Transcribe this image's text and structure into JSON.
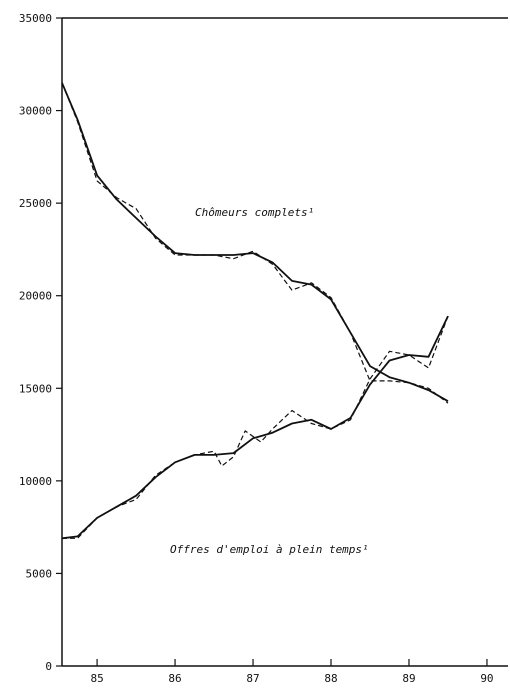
{
  "chart_data": {
    "type": "line",
    "xlim": [
      84.55,
      90.27
    ],
    "xticks": [
      85,
      86,
      87,
      88,
      89,
      90
    ],
    "ylim": [
      0,
      35000
    ],
    "yticks": [
      0,
      5000,
      10000,
      15000,
      20000,
      25000,
      30000,
      35000
    ],
    "annotations": [
      "Chômeurs complets¹",
      "Offres d'emploi à plein temps¹"
    ],
    "series": [
      {
        "color": "#111",
        "dashed": false,
        "x": [
          84.55,
          84.75,
          85.0,
          85.25,
          85.5,
          85.75,
          86.0,
          86.25,
          86.5,
          86.75,
          87.0,
          87.25,
          87.5,
          87.75,
          88.0,
          88.25,
          88.5,
          88.75,
          89.0,
          89.25,
          89.5
        ],
        "values": [
          31500,
          29500,
          26500,
          25200,
          24200,
          23200,
          22300,
          22200,
          22200,
          22200,
          22300,
          21800,
          20800,
          20600,
          19800,
          18000,
          16200,
          15600,
          15300,
          14900,
          14300
        ]
      },
      {
        "color": "#111",
        "dashed": true,
        "x": [
          84.55,
          84.75,
          85.0,
          85.25,
          85.5,
          85.75,
          86.0,
          86.25,
          86.5,
          86.75,
          87.0,
          87.25,
          87.5,
          87.75,
          88.0,
          88.25,
          88.5,
          88.75,
          89.0,
          89.25,
          89.5
        ],
        "values": [
          31500,
          29400,
          26200,
          25300,
          24700,
          23100,
          22200,
          22200,
          22200,
          22000,
          22400,
          21700,
          20300,
          20700,
          19900,
          18000,
          15400,
          15400,
          15300,
          15000,
          14200
        ]
      },
      {
        "color": "#111",
        "dashed": false,
        "x": [
          84.55,
          84.75,
          85.0,
          85.25,
          85.5,
          85.75,
          86.0,
          86.25,
          86.5,
          86.75,
          87.0,
          87.25,
          87.5,
          87.75,
          88.0,
          88.25,
          88.5,
          88.75,
          89.0,
          89.25,
          89.5
        ],
        "values": [
          6900,
          7000,
          8000,
          8600,
          9200,
          10200,
          11000,
          11400,
          11400,
          11500,
          12300,
          12600,
          13100,
          13300,
          12800,
          13400,
          15200,
          16500,
          16800,
          16700,
          18900
        ]
      },
      {
        "color": "#111",
        "dashed": true,
        "x": [
          84.55,
          84.75,
          85.0,
          85.25,
          85.5,
          85.75,
          86.0,
          86.25,
          86.5,
          86.6,
          86.75,
          86.9,
          87.1,
          87.25,
          87.5,
          87.75,
          88.0,
          88.25,
          88.5,
          88.75,
          89.0,
          89.25,
          89.5
        ],
        "values": [
          6900,
          6900,
          8000,
          8600,
          9000,
          10300,
          11000,
          11400,
          11600,
          10800,
          11300,
          12700,
          12100,
          12800,
          13800,
          13100,
          12800,
          13300,
          15500,
          17000,
          16800,
          16100,
          18900
        ]
      }
    ]
  }
}
